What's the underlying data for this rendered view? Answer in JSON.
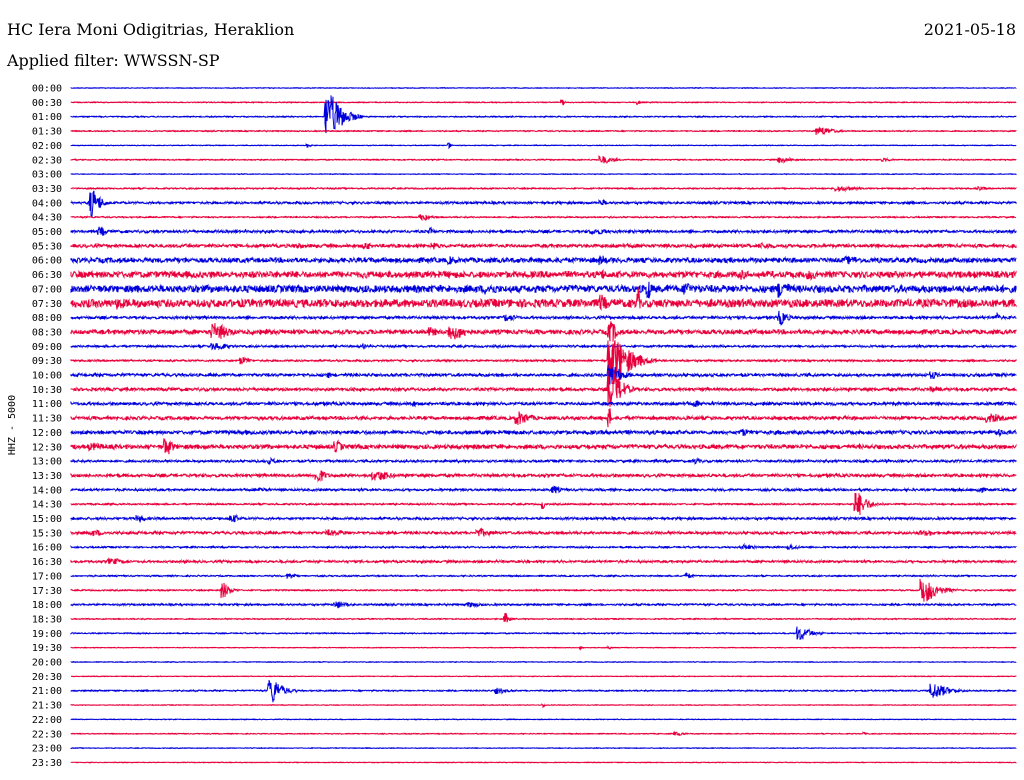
{
  "header": {
    "station": "HC Iera Moni Odigitrias, Heraklion",
    "date": "2021-05-18",
    "filter": "Applied filter: WWSSN-SP"
  },
  "chart_data": {
    "type": "helicorder",
    "ylabel": "HHZ - 5000",
    "row_interval_minutes": 30,
    "colors": {
      "odd_row": "#0000dc",
      "even_row": "#e8003c"
    },
    "rows": [
      {
        "label": "00:00",
        "noise": 0.3,
        "events": []
      },
      {
        "label": "00:30",
        "noise": 0.4,
        "events": [
          {
            "t": 0.52,
            "amp": 3,
            "dur": 0.004
          },
          {
            "t": 0.6,
            "amp": 3,
            "dur": 0.004
          }
        ]
      },
      {
        "label": "01:00",
        "noise": 0.5,
        "events": [
          {
            "t": 0.27,
            "amp": 22,
            "dur": 0.04
          }
        ]
      },
      {
        "label": "01:30",
        "noise": 0.5,
        "events": [
          {
            "t": 0.79,
            "amp": 4,
            "dur": 0.04
          }
        ]
      },
      {
        "label": "02:00",
        "noise": 0.3,
        "events": [
          {
            "t": 0.25,
            "amp": 2,
            "dur": 0.01
          },
          {
            "t": 0.4,
            "amp": 3,
            "dur": 0.004
          }
        ]
      },
      {
        "label": "02:30",
        "noise": 0.5,
        "events": [
          {
            "t": 0.56,
            "amp": 4,
            "dur": 0.03
          },
          {
            "t": 0.75,
            "amp": 3,
            "dur": 0.03
          },
          {
            "t": 0.86,
            "amp": 2,
            "dur": 0.02
          }
        ]
      },
      {
        "label": "03:00",
        "noise": 0.3,
        "events": []
      },
      {
        "label": "03:30",
        "noise": 0.6,
        "events": [
          {
            "t": 0.81,
            "amp": 3,
            "dur": 0.04
          },
          {
            "t": 0.96,
            "amp": 2,
            "dur": 0.02
          }
        ]
      },
      {
        "label": "04:00",
        "noise": 1.0,
        "events": [
          {
            "t": 0.02,
            "amp": 14,
            "dur": 0.025
          },
          {
            "t": 0.56,
            "amp": 3,
            "dur": 0.02
          }
        ]
      },
      {
        "label": "04:30",
        "noise": 0.6,
        "events": [
          {
            "t": 0.37,
            "amp": 3,
            "dur": 0.03
          }
        ]
      },
      {
        "label": "05:00",
        "noise": 1.2,
        "events": [
          {
            "t": 0.03,
            "amp": 5,
            "dur": 0.02
          },
          {
            "t": 0.38,
            "amp": 4,
            "dur": 0.01
          },
          {
            "t": 0.55,
            "amp": 3,
            "dur": 0.05
          }
        ]
      },
      {
        "label": "05:30",
        "noise": 1.6,
        "events": [
          {
            "t": 0.24,
            "amp": 3,
            "dur": 0.02
          },
          {
            "t": 0.31,
            "amp": 4,
            "dur": 0.02
          },
          {
            "t": 0.38,
            "amp": 4,
            "dur": 0.03
          },
          {
            "t": 0.73,
            "amp": 3,
            "dur": 0.05
          }
        ]
      },
      {
        "label": "06:00",
        "noise": 2.4,
        "events": [
          {
            "t": 0.4,
            "amp": 4,
            "dur": 0.03
          },
          {
            "t": 0.56,
            "amp": 5,
            "dur": 0.02
          },
          {
            "t": 0.82,
            "amp": 4,
            "dur": 0.05
          }
        ]
      },
      {
        "label": "06:30",
        "noise": 3.2,
        "events": [
          {
            "t": 0.56,
            "amp": 5,
            "dur": 0.02
          },
          {
            "t": 0.71,
            "amp": 6,
            "dur": 0.01
          },
          {
            "t": 0.78,
            "amp": 5,
            "dur": 0.04
          }
        ]
      },
      {
        "label": "07:00",
        "noise": 3.5,
        "events": [
          {
            "t": 0.44,
            "amp": 6,
            "dur": 0.04
          },
          {
            "t": 0.61,
            "amp": 11,
            "dur": 0.01
          },
          {
            "t": 0.65,
            "amp": 8,
            "dur": 0.02
          },
          {
            "t": 0.75,
            "amp": 9,
            "dur": 0.03
          }
        ]
      },
      {
        "label": "07:30",
        "noise": 4.0,
        "events": [
          {
            "t": 0.05,
            "amp": 7,
            "dur": 0.02
          },
          {
            "t": 0.56,
            "amp": 9,
            "dur": 0.02
          },
          {
            "t": 0.6,
            "amp": 18,
            "dur": 0.004
          }
        ]
      },
      {
        "label": "08:00",
        "noise": 1.2,
        "events": [
          {
            "t": 0.46,
            "amp": 4,
            "dur": 0.03
          },
          {
            "t": 0.75,
            "amp": 7,
            "dur": 0.02
          },
          {
            "t": 0.98,
            "amp": 9,
            "dur": 0.004
          }
        ]
      },
      {
        "label": "08:30",
        "noise": 2.2,
        "events": [
          {
            "t": 0.15,
            "amp": 9,
            "dur": 0.04
          },
          {
            "t": 0.38,
            "amp": 5,
            "dur": 0.02
          },
          {
            "t": 0.4,
            "amp": 8,
            "dur": 0.05
          },
          {
            "t": 0.57,
            "amp": 11,
            "dur": 0.02
          }
        ]
      },
      {
        "label": "09:00",
        "noise": 0.9,
        "events": [
          {
            "t": 0.15,
            "amp": 4,
            "dur": 0.04
          },
          {
            "t": 0.31,
            "amp": 3,
            "dur": 0.004
          }
        ]
      },
      {
        "label": "09:30",
        "noise": 0.8,
        "events": [
          {
            "t": 0.18,
            "amp": 4,
            "dur": 0.02
          },
          {
            "t": 0.57,
            "amp": 25,
            "dur": 0.05
          }
        ]
      },
      {
        "label": "10:00",
        "noise": 1.3,
        "events": [
          {
            "t": 0.27,
            "amp": 3,
            "dur": 0.02
          },
          {
            "t": 0.57,
            "amp": 11,
            "dur": 0.03
          },
          {
            "t": 0.91,
            "amp": 4,
            "dur": 0.02
          }
        ]
      },
      {
        "label": "10:30",
        "noise": 1.4,
        "events": [
          {
            "t": 0.57,
            "amp": 20,
            "dur": 0.03
          },
          {
            "t": 0.91,
            "amp": 3,
            "dur": 0.03
          }
        ]
      },
      {
        "label": "11:00",
        "noise": 1.4,
        "events": [
          {
            "t": 0.36,
            "amp": 3,
            "dur": 0.02
          },
          {
            "t": 0.66,
            "amp": 3,
            "dur": 0.02
          }
        ]
      },
      {
        "label": "11:30",
        "noise": 1.6,
        "events": [
          {
            "t": 0.47,
            "amp": 7,
            "dur": 0.04
          },
          {
            "t": 0.57,
            "amp": 10,
            "dur": 0.004
          },
          {
            "t": 0.97,
            "amp": 5,
            "dur": 0.04
          }
        ]
      },
      {
        "label": "12:00",
        "noise": 1.8,
        "events": [
          {
            "t": 0.71,
            "amp": 4,
            "dur": 0.02
          },
          {
            "t": 0.98,
            "amp": 4,
            "dur": 0.02
          }
        ]
      },
      {
        "label": "12:30",
        "noise": 2.0,
        "events": [
          {
            "t": 0.02,
            "amp": 4,
            "dur": 0.05
          },
          {
            "t": 0.1,
            "amp": 9,
            "dur": 0.02
          },
          {
            "t": 0.28,
            "amp": 6,
            "dur": 0.02
          }
        ]
      },
      {
        "label": "13:00",
        "noise": 1.0,
        "events": [
          {
            "t": 0.21,
            "amp": 3,
            "dur": 0.02
          },
          {
            "t": 0.66,
            "amp": 3,
            "dur": 0.02
          }
        ]
      },
      {
        "label": "13:30",
        "noise": 1.4,
        "events": [
          {
            "t": 0.26,
            "amp": 8,
            "dur": 0.02
          },
          {
            "t": 0.32,
            "amp": 5,
            "dur": 0.05
          }
        ]
      },
      {
        "label": "14:00",
        "noise": 1.0,
        "events": [
          {
            "t": 0.2,
            "amp": 3,
            "dur": 0.02
          },
          {
            "t": 0.51,
            "amp": 4,
            "dur": 0.02
          },
          {
            "t": 0.96,
            "amp": 3,
            "dur": 0.02
          }
        ]
      },
      {
        "label": "14:30",
        "noise": 0.7,
        "events": [
          {
            "t": 0.5,
            "amp": 5,
            "dur": 0.004
          },
          {
            "t": 0.83,
            "amp": 12,
            "dur": 0.03
          }
        ]
      },
      {
        "label": "15:00",
        "noise": 1.0,
        "events": [
          {
            "t": 0.07,
            "amp": 4,
            "dur": 0.02
          },
          {
            "t": 0.17,
            "amp": 4,
            "dur": 0.02
          }
        ]
      },
      {
        "label": "15:30",
        "noise": 1.2,
        "events": [
          {
            "t": 0.02,
            "amp": 3,
            "dur": 0.05
          },
          {
            "t": 0.27,
            "amp": 3,
            "dur": 0.06
          },
          {
            "t": 0.43,
            "amp": 4,
            "dur": 0.04
          },
          {
            "t": 0.9,
            "amp": 3,
            "dur": 0.05
          }
        ]
      },
      {
        "label": "16:00",
        "noise": 0.7,
        "events": [
          {
            "t": 0.71,
            "amp": 3,
            "dur": 0.03
          },
          {
            "t": 0.76,
            "amp": 3,
            "dur": 0.02
          }
        ]
      },
      {
        "label": "16:30",
        "noise": 1.0,
        "events": [
          {
            "t": 0.04,
            "amp": 3,
            "dur": 0.05
          }
        ]
      },
      {
        "label": "17:00",
        "noise": 0.6,
        "events": [
          {
            "t": 0.23,
            "amp": 3,
            "dur": 0.02
          },
          {
            "t": 0.65,
            "amp": 3,
            "dur": 0.02
          }
        ]
      },
      {
        "label": "17:30",
        "noise": 0.6,
        "events": [
          {
            "t": 0.16,
            "amp": 8,
            "dur": 0.02
          },
          {
            "t": 0.9,
            "amp": 12,
            "dur": 0.04
          }
        ]
      },
      {
        "label": "18:00",
        "noise": 0.8,
        "events": [
          {
            "t": 0.28,
            "amp": 4,
            "dur": 0.03
          },
          {
            "t": 0.42,
            "amp": 3,
            "dur": 0.03
          }
        ]
      },
      {
        "label": "18:30",
        "noise": 0.5,
        "events": [
          {
            "t": 0.46,
            "amp": 6,
            "dur": 0.01
          }
        ]
      },
      {
        "label": "19:00",
        "noise": 0.5,
        "events": [
          {
            "t": 0.77,
            "amp": 7,
            "dur": 0.03
          }
        ]
      },
      {
        "label": "19:30",
        "noise": 0.3,
        "events": [
          {
            "t": 0.54,
            "amp": 2,
            "dur": 0.004
          },
          {
            "t": 0.57,
            "amp": 2,
            "dur": 0.004
          }
        ]
      },
      {
        "label": "20:00",
        "noise": 0.3,
        "events": []
      },
      {
        "label": "20:30",
        "noise": 0.3,
        "events": []
      },
      {
        "label": "21:00",
        "noise": 0.6,
        "events": [
          {
            "t": 0.21,
            "amp": 13,
            "dur": 0.03
          },
          {
            "t": 0.45,
            "amp": 3,
            "dur": 0.03
          },
          {
            "t": 0.91,
            "amp": 8,
            "dur": 0.04
          }
        ]
      },
      {
        "label": "21:30",
        "noise": 0.3,
        "events": [
          {
            "t": 0.5,
            "amp": 2,
            "dur": 0.004
          }
        ]
      },
      {
        "label": "22:00",
        "noise": 0.3,
        "events": []
      },
      {
        "label": "22:30",
        "noise": 0.4,
        "events": [
          {
            "t": 0.64,
            "amp": 2,
            "dur": 0.02
          },
          {
            "t": 0.84,
            "amp": 2,
            "dur": 0.004
          }
        ]
      },
      {
        "label": "23:00",
        "noise": 0.3,
        "events": []
      },
      {
        "label": "23:30",
        "noise": 0.3,
        "events": []
      }
    ]
  }
}
